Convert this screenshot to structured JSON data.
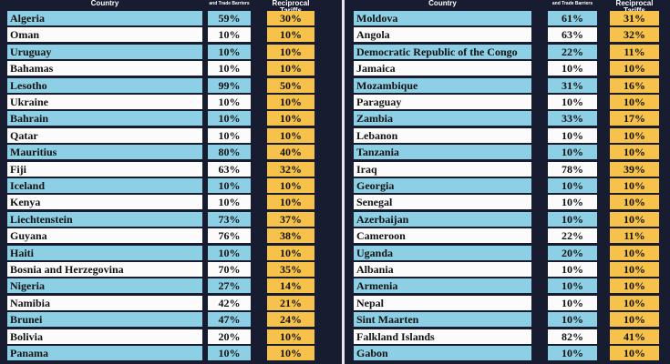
{
  "tables": [
    {
      "headers": [
        "Country",
        "and Trade Barriers",
        "Reciprocal Tariffs"
      ],
      "rows": [
        [
          "Algeria",
          "59%",
          "30%"
        ],
        [
          "Oman",
          "10%",
          "10%"
        ],
        [
          "Uruguay",
          "10%",
          "10%"
        ],
        [
          "Bahamas",
          "10%",
          "10%"
        ],
        [
          "Lesotho",
          "99%",
          "50%"
        ],
        [
          "Ukraine",
          "10%",
          "10%"
        ],
        [
          "Bahrain",
          "10%",
          "10%"
        ],
        [
          "Qatar",
          "10%",
          "10%"
        ],
        [
          "Mauritius",
          "80%",
          "40%"
        ],
        [
          "Fiji",
          "63%",
          "32%"
        ],
        [
          "Iceland",
          "10%",
          "10%"
        ],
        [
          "Kenya",
          "10%",
          "10%"
        ],
        [
          "Liechtenstein",
          "73%",
          "37%"
        ],
        [
          "Guyana",
          "76%",
          "38%"
        ],
        [
          "Haiti",
          "10%",
          "10%"
        ],
        [
          "Bosnia and Herzegovina",
          "70%",
          "35%"
        ],
        [
          "Nigeria",
          "27%",
          "14%"
        ],
        [
          "Namibia",
          "42%",
          "21%"
        ],
        [
          "Brunei",
          "47%",
          "24%"
        ],
        [
          "Bolivia",
          "20%",
          "10%"
        ],
        [
          "Panama",
          "10%",
          "10%"
        ]
      ]
    },
    {
      "headers": [
        "Country",
        "and Trade Barriers",
        "Reciprocal Tariffs"
      ],
      "rows": [
        [
          "Moldova",
          "61%",
          "31%"
        ],
        [
          "Angola",
          "63%",
          "32%"
        ],
        [
          "Democratic Republic of the Congo",
          "22%",
          "11%"
        ],
        [
          "Jamaica",
          "10%",
          "10%"
        ],
        [
          "Mozambique",
          "31%",
          "16%"
        ],
        [
          "Paraguay",
          "10%",
          "10%"
        ],
        [
          "Zambia",
          "33%",
          "17%"
        ],
        [
          "Lebanon",
          "10%",
          "10%"
        ],
        [
          "Tanzania",
          "10%",
          "10%"
        ],
        [
          "Iraq",
          "78%",
          "39%"
        ],
        [
          "Georgia",
          "10%",
          "10%"
        ],
        [
          "Senegal",
          "10%",
          "10%"
        ],
        [
          "Azerbaijan",
          "10%",
          "10%"
        ],
        [
          "Cameroon",
          "22%",
          "11%"
        ],
        [
          "Uganda",
          "20%",
          "10%"
        ],
        [
          "Albania",
          "10%",
          "10%"
        ],
        [
          "Armenia",
          "10%",
          "10%"
        ],
        [
          "Nepal",
          "10%",
          "10%"
        ],
        [
          "Sint Maarten",
          "10%",
          "10%"
        ],
        [
          "Falkland Islands",
          "82%",
          "41%"
        ],
        [
          "Gabon",
          "10%",
          "10%"
        ]
      ]
    }
  ]
}
